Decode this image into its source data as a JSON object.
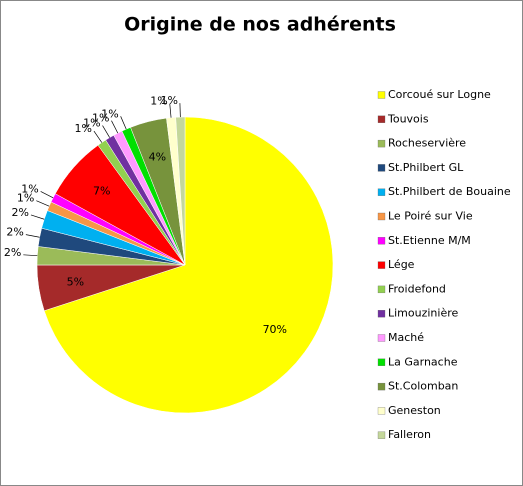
{
  "chart_data": {
    "type": "pie",
    "title": "Origine de nos adhérents",
    "categories": [
      "Corcoué sur Logne",
      "Touvois",
      "Rocheservière",
      "St.Philbert GL",
      "St.Philbert de Bouaine",
      "Le Poiré sur Vie",
      "St.Etienne M/M",
      "Lége",
      "Froidefond",
      "Limouzinière",
      "Maché",
      "La Garnache",
      "St.Colomban",
      "Geneston",
      "Falleron"
    ],
    "values": [
      70,
      5,
      2,
      2,
      2,
      1,
      1,
      7,
      1,
      1,
      1,
      1,
      4,
      1,
      1
    ],
    "value_labels": [
      "70%",
      "5%",
      "2%",
      "2%",
      "2%",
      "1%",
      "1%",
      "7%",
      "1%",
      "1%",
      "1%",
      "1%",
      "4%",
      "1%",
      "1%"
    ],
    "colors": [
      "#ffff00",
      "#a52a2a",
      "#9bbb59",
      "#1f497d",
      "#00b0f0",
      "#f79646",
      "#ff00ff",
      "#ff0000",
      "#92d050",
      "#7030a0",
      "#ff99ff",
      "#00e000",
      "#77933c",
      "#ffffcc",
      "#c4d79b"
    ],
    "legend": "right"
  }
}
